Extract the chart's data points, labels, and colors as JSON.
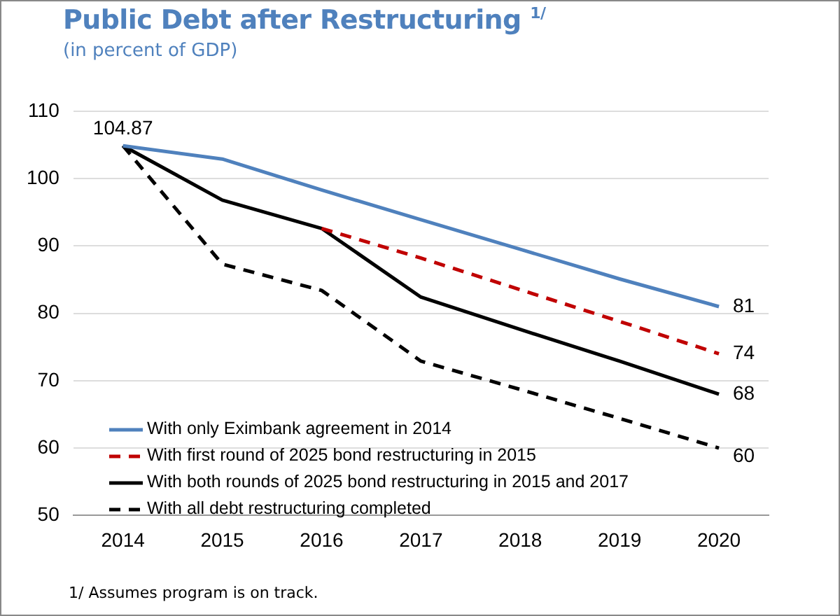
{
  "chart_data": {
    "type": "line",
    "title": "Public Debt after Restructuring $^{1/}$",
    "subtitle": "(in percent of GDP)",
    "categories": [
      "2014",
      "2015",
      "2016",
      "2017",
      "2018",
      "2019",
      "2020"
    ],
    "series": [
      {
        "name": "With only Eximbank agreement in 2014",
        "color": "#4f81bd",
        "line_style": "solid",
        "values": [
          104.87,
          102.9,
          98.3,
          93.9,
          89.5,
          85.1,
          81
        ],
        "value_labels": [
          "104.87",
          null,
          null,
          null,
          null,
          null,
          "81"
        ]
      },
      {
        "name": "With first round of 2025 bond restructuring in 2015",
        "color": "#c00000",
        "line_style": "dashed",
        "values": [
          null,
          null,
          92.6,
          88.2,
          83.5,
          78.8,
          74
        ],
        "value_labels": [
          null,
          null,
          null,
          null,
          null,
          null,
          "74"
        ]
      },
      {
        "name": "With both rounds of 2025 bond restructuring in 2015 and 2017",
        "color": "#000000",
        "line_style": "solid",
        "values": [
          104.87,
          96.8,
          92.6,
          82.4,
          77.6,
          72.9,
          68
        ],
        "value_labels": [
          null,
          null,
          null,
          null,
          null,
          null,
          "68"
        ]
      },
      {
        "name": "With all debt restructuring completed",
        "color": "#000000",
        "line_style": "dashed",
        "values": [
          104.87,
          87.3,
          83.4,
          72.9,
          68.7,
          64.4,
          60
        ],
        "value_labels": [
          null,
          null,
          null,
          null,
          null,
          null,
          "60"
        ]
      }
    ],
    "ylim": [
      50,
      110
    ],
    "yticks": [
      50,
      60,
      70,
      80,
      90,
      100,
      110
    ],
    "grid": "y",
    "legend": "bottom left",
    "marker": "none",
    "annotations": [
      "1/ Assumes program is on track."
    ]
  }
}
